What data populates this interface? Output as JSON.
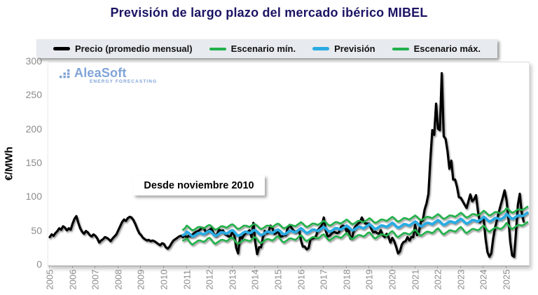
{
  "title": "Previsión de largo plazo del mercado ibérico MIBEL",
  "colors": {
    "title": "#1b1464",
    "price": "#000000",
    "scenario_green": "#22b14c",
    "forecast_blue": "#29abe2",
    "tick_text": "#8c8c8c",
    "legend_bg": "#e7eaee",
    "logo_blue": "#7fa3d7"
  },
  "legend": {
    "items": [
      {
        "label": "Precio (promedio mensual)",
        "color": "#000000",
        "thickness": 5
      },
      {
        "label": "Escenario mín.",
        "color": "#22b14c",
        "thickness": 4
      },
      {
        "label": "Previsión",
        "color": "#29abe2",
        "thickness": 5
      },
      {
        "label": "Escenario máx.",
        "color": "#22b14c",
        "thickness": 4
      }
    ]
  },
  "watermark": {
    "name": "AleaSoft",
    "subtitle": "ENERGY FORECASTING"
  },
  "annotation": "Desde noviembre 2010",
  "chart_data": {
    "type": "line",
    "title": "Previsión de largo plazo del mercado ibérico MIBEL",
    "xlabel": "",
    "ylabel": "€/MWh",
    "ylim": [
      0,
      300
    ],
    "yticks": [
      0,
      50,
      100,
      150,
      200,
      250,
      300
    ],
    "xticks": [
      2005,
      2006,
      2007,
      2008,
      2009,
      2010,
      2011,
      2012,
      2013,
      2014,
      2015,
      2016,
      2017,
      2018,
      2019,
      2020,
      2021,
      2022,
      2023,
      2024,
      2025
    ],
    "grid": "none",
    "legend_position": "top",
    "x_unit": "monthly (decimal years)",
    "series": [
      {
        "name": "Precio (promedio mensual)",
        "color": "#000000",
        "width": 3.2,
        "start_year": 2005.0,
        "values": [
          42,
          46,
          44,
          48,
          51,
          55,
          53,
          58,
          56,
          52,
          55,
          53,
          62,
          69,
          73,
          63,
          55,
          50,
          47,
          51,
          49,
          45,
          43,
          46,
          44,
          40,
          34,
          37,
          39,
          42,
          41,
          39,
          36,
          40,
          43,
          46,
          52,
          58,
          64,
          68,
          66,
          70,
          72,
          71,
          67,
          61,
          54,
          48,
          45,
          41,
          39,
          37,
          38,
          36,
          37,
          36,
          34,
          32,
          30,
          33,
          32,
          27,
          25,
          28,
          33,
          37,
          39,
          41,
          43,
          44,
          42,
          45,
          41,
          44,
          43,
          46,
          48,
          50,
          51,
          53,
          56,
          55,
          49,
          51,
          53,
          55,
          48,
          44,
          47,
          53,
          51,
          52,
          47,
          45,
          43,
          43,
          50,
          45,
          26,
          18,
          43,
          40,
          45,
          48,
          50,
          52,
          42,
          63,
          34,
          17,
          27,
          27,
          42,
          51,
          48,
          50,
          59,
          55,
          47,
          48,
          52,
          43,
          43,
          45,
          45,
          55,
          60,
          56,
          52,
          50,
          51,
          53,
          37,
          28,
          28,
          24,
          26,
          39,
          40,
          41,
          44,
          53,
          56,
          60,
          71,
          52,
          43,
          44,
          47,
          50,
          49,
          48,
          49,
          57,
          59,
          58,
          50,
          55,
          40,
          43,
          55,
          59,
          62,
          64,
          71,
          65,
          62,
          62,
          62,
          54,
          49,
          50,
          48,
          47,
          52,
          45,
          42,
          47,
          42,
          34,
          41,
          36,
          28,
          18,
          21,
          31,
          35,
          36,
          42,
          37,
          42,
          42,
          60,
          45,
          50,
          65,
          67,
          83,
          92,
          106,
          156,
          200,
          193,
          239,
          202,
          200,
          284,
          191,
          187,
          169,
          143,
          155,
          127,
          127,
          116,
          101,
          100,
          95,
          90,
          85,
          95,
          105,
          95,
          98,
          104,
          80,
          64,
          69,
          69,
          40,
          20,
          13,
          18,
          40,
          56,
          67,
          79,
          90,
          100,
          111,
          97,
          70,
          35,
          15,
          13,
          50,
          90,
          106,
          78,
          65
        ]
      },
      {
        "name": "Escenario mín.",
        "color": "#22b14c",
        "width": 2.6,
        "start_year": 2010.8333,
        "values": [
          37,
          38,
          40,
          37,
          33,
          31,
          33,
          35,
          37,
          37,
          36,
          35,
          37,
          40,
          41,
          38,
          34,
          32,
          34,
          36,
          38,
          38,
          37,
          36,
          38,
          41,
          41,
          38,
          34,
          32,
          34,
          36,
          38,
          38,
          37,
          36,
          38,
          41,
          42,
          39,
          35,
          33,
          35,
          37,
          39,
          39,
          38,
          37,
          39,
          42,
          43,
          40,
          36,
          34,
          36,
          38,
          40,
          40,
          39,
          38,
          40,
          43,
          45,
          42,
          38,
          36,
          38,
          40,
          42,
          42,
          41,
          40,
          42,
          45,
          46,
          43,
          39,
          37,
          39,
          41,
          43,
          43,
          42,
          41,
          43,
          46,
          48,
          45,
          41,
          39,
          41,
          43,
          45,
          45,
          44,
          43,
          45,
          48,
          49,
          46,
          42,
          40,
          42,
          44,
          46,
          46,
          45,
          44,
          46,
          49,
          51,
          48,
          44,
          42,
          44,
          46,
          48,
          48,
          47,
          46,
          48,
          51,
          53,
          50,
          46,
          44,
          46,
          48,
          50,
          50,
          49,
          48,
          50,
          53,
          55,
          52,
          48,
          46,
          48,
          50,
          52,
          52,
          51,
          50,
          52,
          55,
          57,
          54,
          50,
          48,
          50,
          52,
          54,
          54,
          53,
          52,
          54,
          57,
          59,
          56,
          52,
          50,
          52,
          54,
          56,
          56,
          55,
          54,
          56,
          59,
          63,
          60,
          56,
          54,
          56,
          58,
          60,
          60,
          59,
          60,
          62,
          64
        ]
      },
      {
        "name": "Escenario máx.",
        "color": "#22b14c",
        "width": 2.6,
        "start_year": 2010.8333,
        "values": [
          53,
          55,
          59,
          57,
          54,
          52,
          53,
          55,
          57,
          57,
          56,
          55,
          57,
          59,
          60,
          58,
          55,
          53,
          54,
          56,
          58,
          58,
          57,
          56,
          58,
          60,
          61,
          59,
          56,
          54,
          55,
          57,
          59,
          59,
          58,
          57,
          59,
          61,
          61,
          59,
          56,
          54,
          55,
          57,
          59,
          59,
          58,
          57,
          59,
          61,
          62,
          60,
          57,
          55,
          56,
          58,
          60,
          60,
          59,
          58,
          60,
          62,
          64,
          62,
          59,
          57,
          58,
          60,
          62,
          62,
          61,
          60,
          62,
          64,
          66,
          64,
          61,
          59,
          60,
          62,
          64,
          64,
          63,
          62,
          64,
          66,
          68,
          66,
          63,
          61,
          62,
          64,
          66,
          66,
          65,
          64,
          66,
          68,
          70,
          68,
          65,
          63,
          64,
          66,
          68,
          68,
          67,
          66,
          68,
          70,
          72,
          70,
          67,
          65,
          66,
          68,
          70,
          70,
          69,
          68,
          70,
          72,
          74,
          72,
          69,
          67,
          68,
          70,
          72,
          72,
          71,
          70,
          72,
          74,
          76,
          74,
          71,
          69,
          70,
          72,
          74,
          74,
          73,
          72,
          74,
          76,
          78,
          76,
          73,
          71,
          72,
          74,
          76,
          76,
          75,
          74,
          76,
          78,
          81,
          79,
          76,
          74,
          75,
          77,
          79,
          79,
          78,
          77,
          79,
          81,
          85,
          83,
          80,
          78,
          79,
          81,
          83,
          83,
          82,
          83,
          85,
          87
        ]
      },
      {
        "name": "Previsión",
        "color": "#29abe2",
        "width": 3.8,
        "start_year": 2010.8333,
        "values": [
          45,
          46,
          50,
          48,
          45,
          43,
          44,
          46,
          48,
          48,
          47,
          46,
          48,
          50,
          51,
          49,
          46,
          44,
          45,
          47,
          49,
          49,
          48,
          47,
          49,
          51,
          52,
          50,
          46,
          44,
          45,
          47,
          49,
          50,
          49,
          48,
          49,
          52,
          52,
          50,
          47,
          45,
          46,
          48,
          50,
          50,
          49,
          48,
          50,
          52,
          53,
          51,
          48,
          46,
          47,
          49,
          51,
          51,
          50,
          49,
          51,
          53,
          55,
          53,
          50,
          48,
          49,
          51,
          53,
          53,
          52,
          51,
          53,
          55,
          57,
          55,
          52,
          50,
          51,
          53,
          55,
          55,
          54,
          53,
          55,
          57,
          59,
          57,
          54,
          52,
          53,
          55,
          57,
          57,
          56,
          55,
          57,
          59,
          61,
          59,
          56,
          54,
          55,
          57,
          59,
          59,
          58,
          57,
          59,
          61,
          63,
          61,
          58,
          56,
          57,
          59,
          61,
          61,
          60,
          59,
          61,
          63,
          65,
          63,
          60,
          58,
          59,
          61,
          63,
          63,
          62,
          61,
          63,
          65,
          67,
          65,
          62,
          60,
          61,
          63,
          65,
          65,
          64,
          63,
          65,
          67,
          69,
          67,
          64,
          62,
          63,
          65,
          67,
          67,
          66,
          65,
          67,
          69,
          72,
          70,
          67,
          65,
          66,
          68,
          70,
          70,
          69,
          68,
          70,
          72,
          76,
          74,
          71,
          69,
          70,
          72,
          74,
          74,
          73,
          74,
          76,
          78
        ]
      }
    ]
  }
}
